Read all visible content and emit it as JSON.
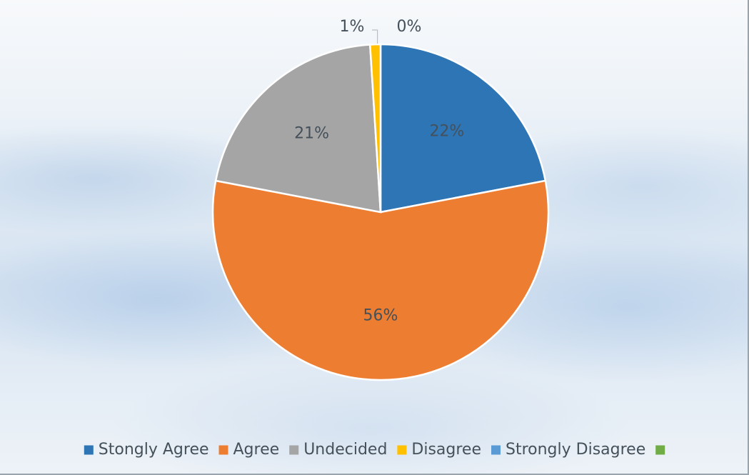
{
  "chart_data": {
    "type": "pie",
    "categories": [
      "Stongly Agree",
      "Agree",
      "Undecided",
      "Disagree",
      "Strongly Disagree",
      ""
    ],
    "values": [
      22,
      56,
      21,
      1,
      0,
      0
    ],
    "data_labels": [
      "22%",
      "56%",
      "21%",
      "1%",
      "0%",
      ""
    ],
    "colors": [
      "#2e75b6",
      "#ed7d31",
      "#a5a5a5",
      "#ffc000",
      "#5b9bd5",
      "#70ad47"
    ],
    "legend_position": "bottom",
    "title": ""
  }
}
